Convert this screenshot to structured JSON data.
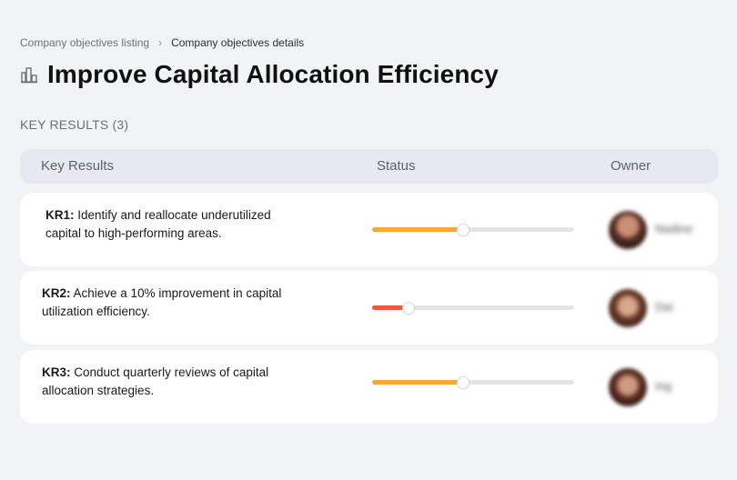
{
  "breadcrumb": {
    "parent": "Company objectives listing",
    "separator": "›",
    "current": "Company objectives details"
  },
  "title": "Improve Capital Allocation Efficiency",
  "title_icon": "building-chart-icon",
  "section_label": "KEY RESULTS (3)",
  "table": {
    "columns": [
      "Key Results",
      "Status",
      "Owner"
    ]
  },
  "key_results": [
    {
      "id": "KR1:",
      "text": " Identify and reallocate underutilized capital to high-performing areas.",
      "progress": 0.45,
      "color": "#f7a733",
      "owner": "Nadine"
    },
    {
      "id": "KR2:",
      "text": " Achieve a 10% improvement in capital utilization efficiency.",
      "progress": 0.18,
      "color": "#f0573b",
      "owner": "Dai"
    },
    {
      "id": "KR3:",
      "text": " Conduct quarterly reviews of capital allocation strategies.",
      "progress": 0.45,
      "color": "#f7a733",
      "owner": "Ing"
    }
  ]
}
